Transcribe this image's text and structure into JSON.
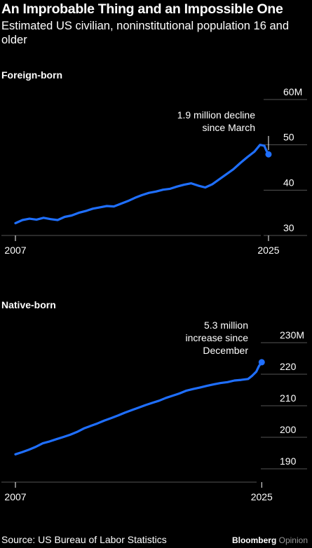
{
  "title": "An Improbable Thing and an Impossible One",
  "subtitle": "Estimated US civilian, noninstitutional population 16 and older",
  "source": "Source: US Bureau of Labor Statistics",
  "brand": {
    "name": "Bloomberg",
    "section": "Opinion"
  },
  "colors": {
    "line": "#1f6fff",
    "background": "#000000",
    "grid": "#555555"
  },
  "chart_data": [
    {
      "type": "line",
      "title": "Foreign-born",
      "unit": "M",
      "xlim": [
        2007,
        2025.6
      ],
      "ylim": [
        30,
        60
      ],
      "x_ticks": [
        2007,
        2025
      ],
      "y_ticks": [
        30,
        40,
        50,
        60
      ],
      "y_tick_labels": [
        "30",
        "40",
        "50",
        "60M"
      ],
      "annotation": {
        "text": [
          "1.9 million decline",
          "since March"
        ],
        "x": 2025.0,
        "y": 47.9
      },
      "series": [
        {
          "x": [
            2007.0,
            2007.5,
            2008.0,
            2008.5,
            2009.0,
            2009.5,
            2010.0,
            2010.5,
            2011.0,
            2011.5,
            2012.0,
            2012.5,
            2013.0,
            2013.5,
            2014.0,
            2014.5,
            2015.0,
            2015.5,
            2016.0,
            2016.5,
            2017.0,
            2017.5,
            2018.0,
            2018.5,
            2019.0,
            2019.5,
            2020.0,
            2020.5,
            2021.0,
            2021.5,
            2022.0,
            2022.5,
            2023.0,
            2023.5,
            2024.0,
            2024.4,
            2024.7,
            2024.85,
            2025.0
          ],
          "y": [
            32.7,
            33.4,
            33.7,
            33.5,
            33.9,
            33.6,
            33.4,
            34.1,
            34.4,
            35.0,
            35.4,
            35.9,
            36.2,
            36.5,
            36.4,
            37.0,
            37.6,
            38.3,
            38.9,
            39.4,
            39.7,
            40.1,
            40.3,
            40.8,
            41.2,
            41.5,
            41.0,
            40.6,
            41.3,
            42.4,
            43.5,
            44.6,
            46.0,
            47.3,
            48.5,
            50.0,
            49.8,
            48.7,
            47.9
          ]
        }
      ]
    },
    {
      "type": "line",
      "title": "Native-born",
      "unit": "M",
      "xlim": [
        2007,
        2025.6
      ],
      "ylim": [
        190,
        230
      ],
      "x_ticks": [
        2007,
        2025
      ],
      "y_ticks": [
        190,
        200,
        210,
        220,
        230
      ],
      "y_tick_labels": [
        "190",
        "200",
        "210",
        "220",
        "230M"
      ],
      "annotation": {
        "text": [
          "5.3 million",
          "increase since",
          "December"
        ],
        "x": 2025.0,
        "y": 223.8
      },
      "series": [
        {
          "x": [
            2007.0,
            2007.5,
            2008.0,
            2008.5,
            2009.0,
            2009.5,
            2010.0,
            2010.5,
            2011.0,
            2011.5,
            2012.0,
            2012.5,
            2013.0,
            2013.5,
            2014.0,
            2014.5,
            2015.0,
            2015.5,
            2016.0,
            2016.5,
            2017.0,
            2017.5,
            2018.0,
            2018.5,
            2019.0,
            2019.5,
            2020.0,
            2020.5,
            2021.0,
            2021.5,
            2022.0,
            2022.5,
            2023.0,
            2023.5,
            2024.0,
            2024.3,
            2024.6,
            2024.8,
            2025.0
          ],
          "y": [
            194.6,
            195.3,
            196.1,
            197.0,
            198.1,
            198.7,
            199.4,
            200.1,
            200.8,
            201.7,
            202.8,
            203.6,
            204.4,
            205.3,
            206.1,
            206.9,
            207.8,
            208.6,
            209.4,
            210.2,
            210.9,
            211.6,
            212.5,
            213.2,
            213.9,
            214.8,
            215.3,
            215.8,
            216.3,
            216.8,
            217.2,
            217.5,
            218.0,
            218.2,
            218.5,
            219.5,
            220.8,
            222.6,
            223.8
          ]
        }
      ]
    }
  ]
}
